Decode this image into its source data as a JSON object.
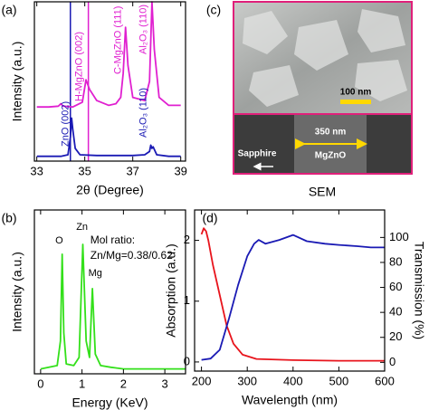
{
  "chart_data": [
    {
      "type": "line",
      "panel_label": "(a)",
      "xlabel": "2θ (Degree)",
      "ylabel": "Intensity (a.u.)",
      "xlim": [
        32.9,
        39.2
      ],
      "ylim": [
        0,
        100
      ],
      "xticks": [
        33,
        35,
        37,
        39
      ],
      "series": [
        {
          "color": "#e020d0",
          "x": [
            33,
            33.5,
            33.9,
            34.0,
            34.1,
            34.5,
            34.9,
            35.05,
            35.2,
            35.5,
            36,
            36.3,
            36.5,
            36.6,
            36.7,
            36.8,
            37,
            37.5,
            37.7,
            37.8,
            37.9,
            38.1,
            38.5,
            39
          ],
          "values": [
            34,
            34,
            34.5,
            36,
            34.5,
            34,
            37,
            51,
            45,
            38,
            35,
            36,
            40,
            55,
            84,
            60,
            40,
            38,
            50,
            100,
            70,
            40,
            35,
            35
          ]
        },
        {
          "color": "#1a1ab4",
          "x": [
            33,
            33.5,
            34,
            34.3,
            34.4,
            34.45,
            34.5,
            34.6,
            34.8,
            35.5,
            36,
            37,
            37.5,
            37.7,
            37.75,
            37.8,
            37.85,
            38,
            38.5,
            39
          ],
          "values": [
            3,
            3,
            3,
            4,
            15,
            27,
            20,
            8,
            4,
            3.5,
            3.5,
            3.5,
            4,
            6,
            10,
            8,
            9,
            4,
            3,
            3
          ]
        }
      ],
      "vlines": [
        {
          "x": 34.4,
          "color": "#1a1ab4"
        },
        {
          "x": 35.15,
          "color": "#e020d0"
        }
      ],
      "annotations": [
        {
          "text": "ZnO (002)",
          "color": "#1a1ab4"
        },
        {
          "text": "H-MgZnO (002)",
          "color": "#e020d0"
        },
        {
          "text": "C-MgZnO (111)",
          "color": "#e020d0"
        },
        {
          "text": "Al₂O₃ (110)",
          "color": "#e020d0"
        },
        {
          "text": "Al₂O₃ (110)",
          "color": "#1a1ab4"
        }
      ]
    },
    {
      "type": "line",
      "panel_label": "(b)",
      "xlabel": "Energy (KeV)",
      "ylabel": "Intensity (a.u.)",
      "xlim": [
        -0.15,
        3.5
      ],
      "ylim": [
        0,
        100
      ],
      "xticks": [
        0,
        1,
        2,
        3
      ],
      "series": [
        {
          "color": "#33e01a",
          "x": [
            0,
            0.2,
            0.4,
            0.48,
            0.52,
            0.56,
            0.62,
            0.8,
            0.93,
            1.02,
            1.1,
            1.18,
            1.25,
            1.32,
            1.45,
            1.7,
            2,
            2.5,
            3,
            3.5
          ],
          "values": [
            3,
            4,
            5,
            20,
            73,
            25,
            6,
            5,
            10,
            79,
            20,
            10,
            52,
            12,
            5,
            4,
            3,
            3,
            3,
            3
          ]
        }
      ],
      "annotations": [
        {
          "text": "O",
          "color": "#000000"
        },
        {
          "text": "Zn",
          "color": "#000000"
        },
        {
          "text": "Mg",
          "color": "#000000"
        },
        {
          "text": "Mol ratio:",
          "color": "#000000"
        },
        {
          "text": "Zn/Mg=0.38/0.62",
          "color": "#000000"
        }
      ]
    },
    {
      "type": "line",
      "panel_label": "(d)",
      "xlabel": "Wavelength (nm)",
      "ylabel": "Absorption (a.u.)",
      "y2label": "Transmission (%)",
      "xlim": [
        185,
        600
      ],
      "ylim": [
        -0.15,
        2.5
      ],
      "y2lim": [
        -7,
        122
      ],
      "xticks": [
        200,
        300,
        400,
        500,
        600
      ],
      "yticks": [
        0,
        1,
        2
      ],
      "y2ticks": [
        0,
        20,
        40,
        60,
        80,
        100
      ],
      "series": [
        {
          "color": "#e8141c",
          "x": [
            200,
            205,
            210,
            215,
            225,
            240,
            255,
            270,
            290,
            320,
            400,
            500,
            600
          ],
          "values": [
            2.1,
            2.2,
            2.15,
            2.0,
            1.6,
            1.1,
            0.6,
            0.3,
            0.12,
            0.05,
            0.03,
            0.02,
            0.02
          ]
        },
        {
          "color": "#1a1ab4",
          "axis": "y2",
          "x": [
            200,
            220,
            240,
            260,
            280,
            300,
            315,
            325,
            340,
            370,
            400,
            430,
            470,
            500,
            540,
            570,
            600
          ],
          "values": [
            2,
            3,
            10,
            35,
            62,
            85,
            95,
            98,
            95,
            98,
            102,
            97,
            95,
            94,
            93,
            92,
            92
          ]
        }
      ]
    }
  ],
  "sem_panel": {
    "panel_label": "(c)",
    "caption": "SEM",
    "scale_bar": "100 nm",
    "thickness": "350 nm",
    "substrate": "Sapphire",
    "film": "MgZnO"
  }
}
